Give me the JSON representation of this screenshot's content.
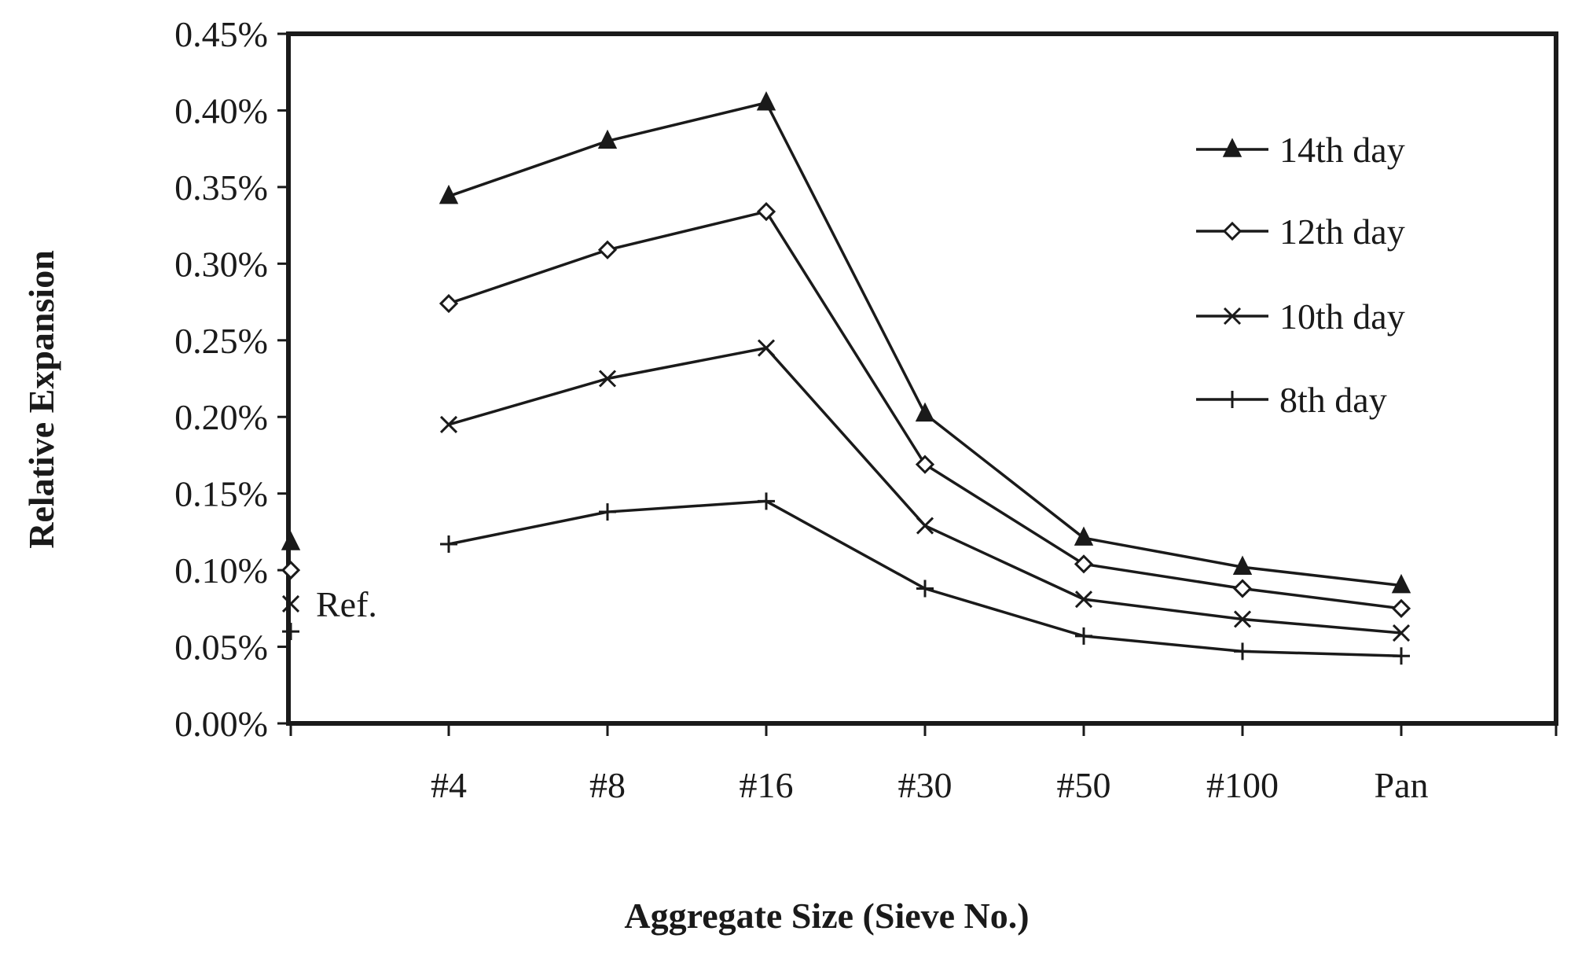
{
  "chart_data": {
    "type": "line",
    "title": "",
    "xlabel": "Aggregate Size (Sieve No.)",
    "ylabel": "Relative Expansion",
    "categories": [
      "#4",
      "#8",
      "#16",
      "#30",
      "#50",
      "#100",
      "Pan"
    ],
    "ylim": [
      0,
      0.45
    ],
    "yticks": [
      "0.00%",
      "0.05%",
      "0.10%",
      "0.15%",
      "0.20%",
      "0.25%",
      "0.30%",
      "0.35%",
      "0.40%",
      "0.45%"
    ],
    "grid": false,
    "legend_position": "top-right",
    "reference": {
      "label": "Ref.",
      "values": {
        "14th day": 0.118,
        "12th day": 0.1,
        "10th day": 0.078,
        "8th day": 0.06
      }
    },
    "series": [
      {
        "name": "14th day",
        "marker": "triangle",
        "values": [
          0.344,
          0.38,
          0.405,
          0.202,
          0.121,
          0.102,
          0.09
        ]
      },
      {
        "name": "12th day",
        "marker": "diamond",
        "values": [
          0.274,
          0.309,
          0.334,
          0.169,
          0.104,
          0.088,
          0.075
        ]
      },
      {
        "name": "10th day",
        "marker": "x",
        "values": [
          0.195,
          0.225,
          0.245,
          0.129,
          0.081,
          0.068,
          0.059
        ]
      },
      {
        "name": "8th day",
        "marker": "plus",
        "values": [
          0.117,
          0.138,
          0.145,
          0.088,
          0.057,
          0.047,
          0.044
        ]
      }
    ]
  },
  "colors": {
    "ink": "#1a1a1a",
    "background": "#ffffff"
  }
}
